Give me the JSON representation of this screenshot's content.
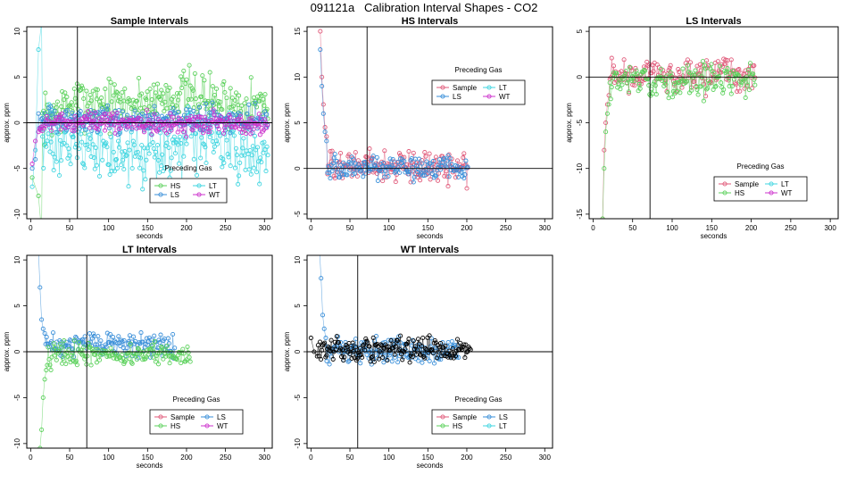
{
  "figure": {
    "title": "091121a   Calibration Interval Shapes - CO2"
  },
  "chart_data": [
    {
      "type": "scatter",
      "title": "Sample Intervals",
      "xlabel": "seconds",
      "ylabel": "approx. ppm",
      "xlim": [
        -5,
        310
      ],
      "ylim": [
        -10.5,
        10.5
      ],
      "xticks": [
        0,
        50,
        100,
        150,
        200,
        250,
        300
      ],
      "yticks": [
        -10,
        -5,
        0,
        5,
        10
      ],
      "vline": 60,
      "hline": 0,
      "legend": {
        "title": "Preceding Gas",
        "position": "bottom-center",
        "entries": [
          {
            "name": "HS",
            "color": "#5cd15c"
          },
          {
            "name": "LT",
            "color": "#3fd5e0"
          },
          {
            "name": "LS",
            "color": "#3a8fd9"
          },
          {
            "name": "WT",
            "color": "#cc33cc"
          }
        ]
      },
      "series": [
        {
          "name": "HS",
          "color": "#5cd15c",
          "start": [
            [
              2,
              -6
            ],
            [
              10,
              -8
            ],
            [
              14,
              -12
            ]
          ],
          "x_end": 305,
          "trend": "above",
          "level": 2.5,
          "spread": 2.0
        },
        {
          "name": "LT",
          "color": "#3fd5e0",
          "start": [
            [
              2,
              -7
            ],
            [
              6,
              -3
            ],
            [
              10,
              8
            ],
            [
              14,
              11
            ]
          ],
          "x_end": 305,
          "trend": "below",
          "level": -3.0,
          "spread": 2.5
        },
        {
          "name": "LS",
          "color": "#3a8fd9",
          "start": [
            [
              2,
              -5
            ],
            [
              6,
              -4
            ],
            [
              10,
              1
            ]
          ],
          "x_end": 305,
          "trend": "flat",
          "level": 0.3,
          "spread": 1.0
        },
        {
          "name": "WT",
          "color": "#cc33cc",
          "start": [
            [
              2,
              -4.5
            ],
            [
              6,
              -2
            ],
            [
              10,
              -1
            ]
          ],
          "x_end": 305,
          "trend": "flat",
          "level": 0.0,
          "spread": 0.8
        }
      ]
    },
    {
      "type": "scatter",
      "title": "HS Intervals",
      "xlabel": "seconds",
      "ylabel": "approx. ppm",
      "xlim": [
        -5,
        310
      ],
      "ylim": [
        -5.5,
        15.5
      ],
      "xticks": [
        0,
        50,
        100,
        150,
        200,
        250,
        300
      ],
      "yticks": [
        -5,
        0,
        5,
        10,
        15
      ],
      "vline": 72,
      "hline": 0,
      "legend": {
        "title": "Preceding Gas",
        "position": "top-center",
        "entries": [
          {
            "name": "Sample",
            "color": "#e05a7a"
          },
          {
            "name": "LT",
            "color": "#3fd5e0"
          },
          {
            "name": "LS",
            "color": "#3a8fd9"
          },
          {
            "name": "WT",
            "color": "#cc33cc"
          }
        ]
      },
      "series": [
        {
          "name": "Sample",
          "color": "#e05a7a",
          "start": [
            [
              12,
              15
            ],
            [
              14,
              10
            ],
            [
              16,
              7
            ],
            [
              18,
              4.5
            ],
            [
              20,
              3.5
            ]
          ],
          "x_end": 202,
          "trend": "flat",
          "level": 0.2,
          "spread": 1.2
        },
        {
          "name": "LS",
          "color": "#3a8fd9",
          "start": [
            [
              12,
              13
            ],
            [
              14,
              9
            ],
            [
              16,
              6
            ],
            [
              18,
              4
            ],
            [
              20,
              3
            ]
          ],
          "x_end": 202,
          "trend": "flat",
          "level": 0.1,
          "spread": 0.9
        }
      ]
    },
    {
      "type": "scatter",
      "title": "LS Intervals",
      "xlabel": "seconds",
      "ylabel": "approx. ppm",
      "xlim": [
        -5,
        310
      ],
      "ylim": [
        -15.5,
        5.5
      ],
      "xticks": [
        0,
        50,
        100,
        150,
        200,
        250,
        300
      ],
      "yticks": [
        -15,
        -10,
        -5,
        0,
        5
      ],
      "vline": 72,
      "hline": 0,
      "legend": {
        "title": "Preceding Gas",
        "position": "bottom-right",
        "entries": [
          {
            "name": "Sample",
            "color": "#e05a7a"
          },
          {
            "name": "LT",
            "color": "#3fd5e0"
          },
          {
            "name": "HS",
            "color": "#5cd15c"
          },
          {
            "name": "WT",
            "color": "#cc33cc"
          }
        ]
      },
      "series": [
        {
          "name": "Sample",
          "color": "#e05a7a",
          "start": [
            [
              12,
              -15.5
            ],
            [
              14,
              -8
            ],
            [
              16,
              -5
            ],
            [
              18,
              -3
            ],
            [
              20,
              -2
            ]
          ],
          "x_end": 205,
          "trend": "flat",
          "level": 0.2,
          "spread": 1.3
        },
        {
          "name": "HS",
          "color": "#5cd15c",
          "start": [
            [
              12,
              -15.5
            ],
            [
              14,
              -10
            ],
            [
              16,
              -6
            ],
            [
              18,
              -4
            ],
            [
              20,
              -3
            ]
          ],
          "x_end": 205,
          "trend": "flat",
          "level": -0.3,
          "spread": 1.3
        }
      ]
    },
    {
      "type": "scatter",
      "title": "LT Intervals",
      "xlabel": "seconds",
      "ylabel": "approx. ppm",
      "xlim": [
        -5,
        310
      ],
      "ylim": [
        -10.5,
        10.5
      ],
      "xticks": [
        0,
        50,
        100,
        150,
        200,
        250,
        300
      ],
      "yticks": [
        -10,
        -5,
        0,
        5,
        10
      ],
      "vline": 72,
      "hline": 0,
      "legend": {
        "title": "Preceding Gas",
        "position": "bottom-center",
        "entries": [
          {
            "name": "Sample",
            "color": "#e05a7a"
          },
          {
            "name": "LS",
            "color": "#3a8fd9"
          },
          {
            "name": "HS",
            "color": "#5cd15c"
          },
          {
            "name": "WT",
            "color": "#cc33cc"
          }
        ]
      },
      "series": [
        {
          "name": "LS",
          "color": "#3a8fd9",
          "start": [
            [
              10,
              11
            ],
            [
              12,
              7
            ],
            [
              14,
              3.5
            ],
            [
              16,
              2.5
            ],
            [
              18,
              2
            ]
          ],
          "x_end": 185,
          "trend": "flat",
          "level": 0.8,
          "spread": 0.9
        },
        {
          "name": "HS",
          "color": "#5cd15c",
          "start": [
            [
              12,
              -10.5
            ],
            [
              14,
              -8.5
            ],
            [
              16,
              -5
            ],
            [
              18,
              -3
            ],
            [
              20,
              -2
            ]
          ],
          "x_end": 205,
          "trend": "flat",
          "level": -0.3,
          "spread": 0.9
        }
      ]
    },
    {
      "type": "scatter",
      "title": "WT Intervals",
      "xlabel": "seconds",
      "ylabel": "approx. ppm",
      "xlim": [
        -5,
        310
      ],
      "ylim": [
        -10.5,
        10.5
      ],
      "xticks": [
        0,
        50,
        100,
        150,
        200,
        250,
        300
      ],
      "yticks": [
        -10,
        -5,
        0,
        5,
        10
      ],
      "vline": 60,
      "hline": 0,
      "legend": {
        "title": "Preceding Gas",
        "position": "bottom-center",
        "entries": [
          {
            "name": "Sample",
            "color": "#e05a7a"
          },
          {
            "name": "LS",
            "color": "#3a8fd9"
          },
          {
            "name": "HS",
            "color": "#5cd15c"
          },
          {
            "name": "LT",
            "color": "#3fd5e0"
          }
        ]
      },
      "series": [
        {
          "name": "LS",
          "color": "#3a8fd9",
          "start": [
            [
              11,
              11
            ],
            [
              13,
              8
            ],
            [
              15,
              4
            ],
            [
              17,
              2.5
            ],
            [
              19,
              1.5
            ]
          ],
          "x_end": 190,
          "trend": "flat",
          "level": 0.0,
          "spread": 1.0
        },
        {
          "name": "",
          "color": "#000000",
          "start": [
            [
              0,
              1.5
            ],
            [
              4,
              0
            ],
            [
              8,
              -0.5
            ]
          ],
          "x_end": 205,
          "trend": "flat",
          "level": 0.3,
          "spread": 0.9
        }
      ]
    }
  ]
}
